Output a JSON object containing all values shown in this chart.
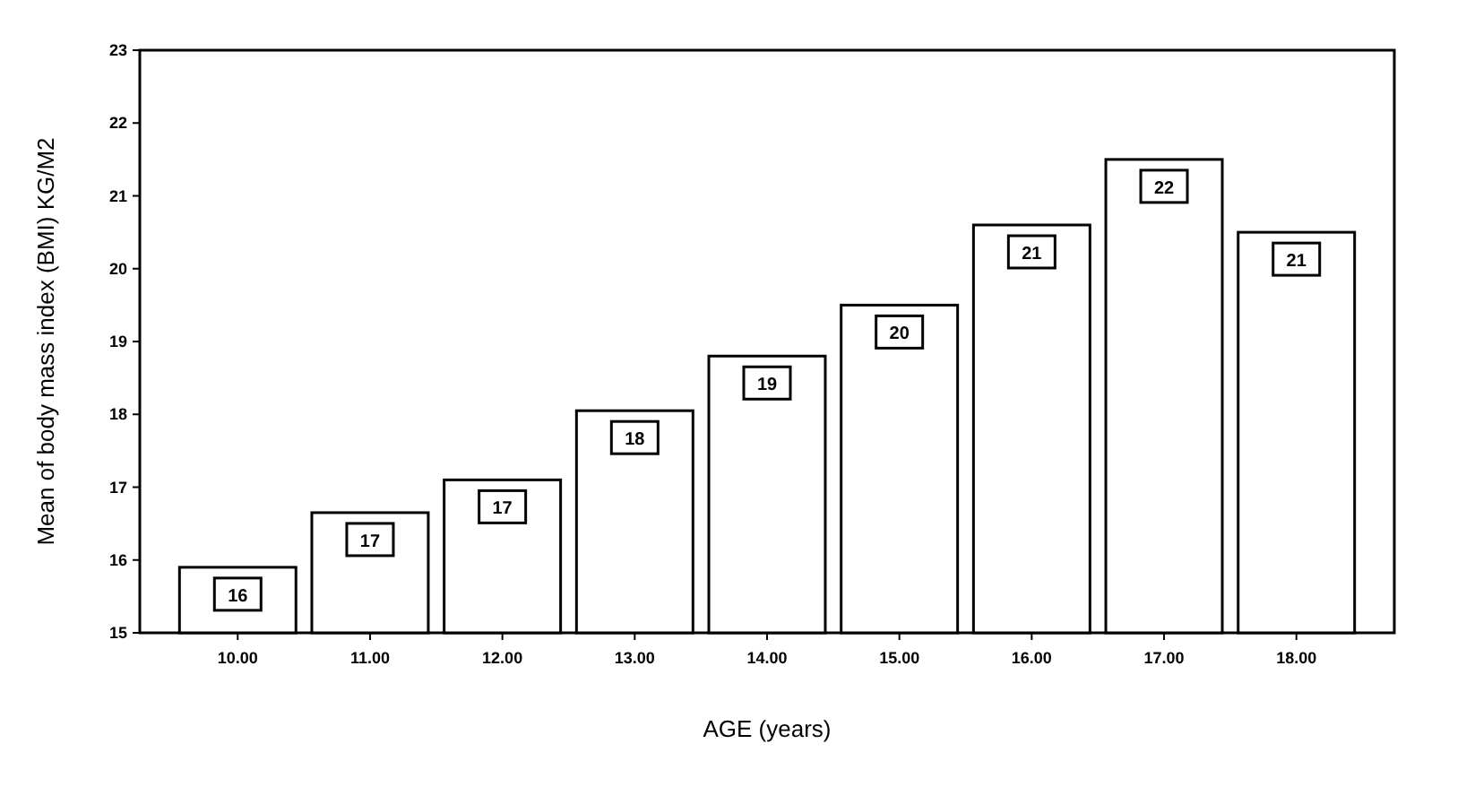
{
  "chart_data": {
    "type": "bar",
    "xlabel": "AGE (years)",
    "ylabel": "Mean of body mass index (BMI) KG/M2",
    "categories": [
      "10.00",
      "11.00",
      "12.00",
      "13.00",
      "14.00",
      "15.00",
      "16.00",
      "17.00",
      "18.00"
    ],
    "values": [
      15.9,
      16.65,
      17.1,
      18.05,
      18.8,
      19.5,
      20.6,
      21.5,
      20.5
    ],
    "value_labels": [
      "16",
      "17",
      "17",
      "18",
      "19",
      "20",
      "21",
      "22",
      "21"
    ],
    "color": "#ffffff",
    "ylim": [
      15,
      23
    ],
    "yticks": [
      15,
      16,
      17,
      18,
      19,
      20,
      21,
      22,
      23
    ],
    "grid": false
  }
}
